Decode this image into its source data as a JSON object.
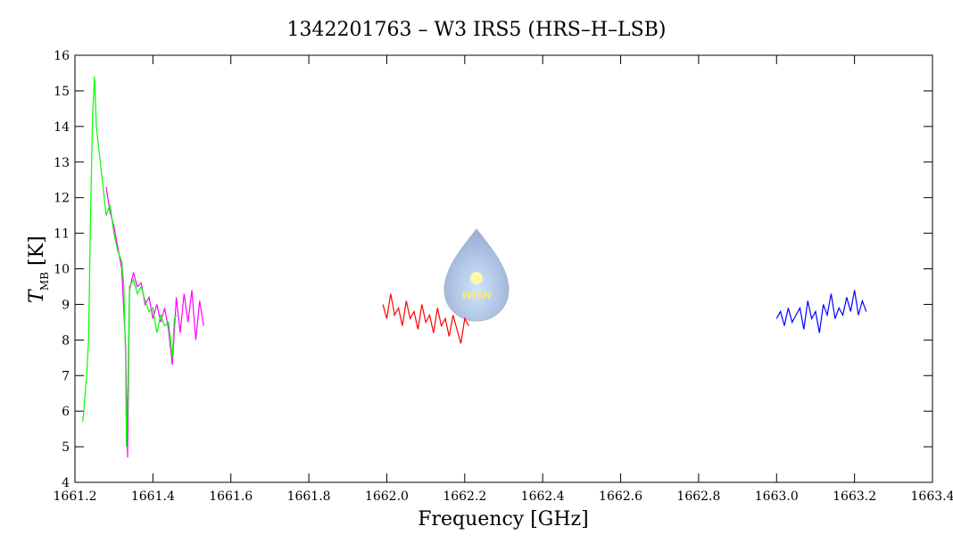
{
  "chart_data": {
    "type": "line",
    "title": "1342201763 – W3 IRS5 (HRS–H–LSB)",
    "xlabel": "Frequency [GHz]",
    "ylabel": "T",
    "ylabel_sub": "MB",
    "ylabel_unit": "[K]",
    "logo_text": "WISH",
    "xlim": [
      1661.2,
      1663.4
    ],
    "xticks": [
      1661.2,
      1661.4,
      1661.6,
      1661.8,
      {
        "value": 1662,
        "label": "1662.0"
      },
      1662.2,
      1662.4,
      1662.6,
      1662.8,
      {
        "value": 1663,
        "label": "1663.0"
      },
      1663.2,
      1663.4
    ],
    "ylim": [
      4,
      16
    ],
    "yticks": [
      4,
      5,
      6,
      7,
      8,
      9,
      10,
      11,
      12,
      13,
      14,
      15,
      16
    ],
    "series": [
      {
        "color": "#ff00ff",
        "x": [
          1661.28,
          1661.29,
          1661.3,
          1661.31,
          1661.32,
          1661.33,
          1661.335,
          1661.34,
          1661.35,
          1661.36,
          1661.37,
          1661.38,
          1661.39,
          1661.4,
          1661.41,
          1661.42,
          1661.43,
          1661.44,
          1661.45,
          1661.46,
          1661.47,
          1661.48,
          1661.49,
          1661.5,
          1661.51,
          1661.52,
          1661.53
        ],
        "values": [
          12.3,
          11.6,
          11.2,
          10.6,
          10.0,
          7.8,
          4.7,
          9.4,
          9.9,
          9.5,
          9.6,
          9.0,
          9.2,
          8.6,
          9.0,
          8.5,
          8.9,
          8.3,
          7.3,
          9.2,
          8.2,
          9.3,
          8.5,
          9.4,
          8.0,
          9.1,
          8.4
        ]
      },
      {
        "color": "#00ff00",
        "x": [
          1661.22,
          1661.23,
          1661.235,
          1661.24,
          1661.245,
          1661.25,
          1661.255,
          1661.26,
          1661.27,
          1661.28,
          1661.29,
          1661.3,
          1661.31,
          1661.32,
          1661.325,
          1661.33,
          1661.332,
          1661.335,
          1661.34,
          1661.35,
          1661.36,
          1661.37,
          1661.38,
          1661.39,
          1661.4,
          1661.41,
          1661.42,
          1661.43,
          1661.44,
          1661.45,
          1661.455,
          1661.46
        ],
        "values": [
          5.7,
          7.0,
          8.0,
          11.5,
          14.2,
          15.4,
          14.0,
          13.5,
          12.5,
          11.5,
          11.8,
          11.0,
          10.5,
          10.2,
          9.6,
          7.5,
          5.0,
          6.0,
          9.5,
          9.7,
          9.3,
          9.5,
          9.1,
          8.8,
          8.9,
          8.2,
          8.7,
          8.4,
          8.5,
          7.5,
          8.6,
          8.7
        ]
      },
      {
        "color": "#ff0000",
        "x": [
          1661.99,
          1662.0,
          1662.01,
          1662.02,
          1662.03,
          1662.04,
          1662.05,
          1662.06,
          1662.07,
          1662.08,
          1662.09,
          1662.1,
          1662.11,
          1662.12,
          1662.13,
          1662.14,
          1662.15,
          1662.16,
          1662.17,
          1662.18,
          1662.19,
          1662.2,
          1662.21
        ],
        "values": [
          9.0,
          8.6,
          9.3,
          8.7,
          8.9,
          8.4,
          9.1,
          8.6,
          8.8,
          8.3,
          9.0,
          8.5,
          8.7,
          8.2,
          8.9,
          8.4,
          8.6,
          8.1,
          8.7,
          8.3,
          7.9,
          8.6,
          8.4
        ]
      },
      {
        "color": "#0000ff",
        "x": [
          1663.0,
          1663.01,
          1663.02,
          1663.03,
          1663.04,
          1663.05,
          1663.06,
          1663.07,
          1663.08,
          1663.09,
          1663.1,
          1663.11,
          1663.12,
          1663.13,
          1663.14,
          1663.15,
          1663.16,
          1663.17,
          1663.18,
          1663.19,
          1663.2,
          1663.21,
          1663.22,
          1663.23
        ],
        "values": [
          8.6,
          8.8,
          8.4,
          8.9,
          8.5,
          8.7,
          8.9,
          8.3,
          9.1,
          8.6,
          8.8,
          8.2,
          9.0,
          8.7,
          9.3,
          8.6,
          8.9,
          8.7,
          9.2,
          8.8,
          9.4,
          8.7,
          9.1,
          8.8
        ]
      }
    ]
  }
}
